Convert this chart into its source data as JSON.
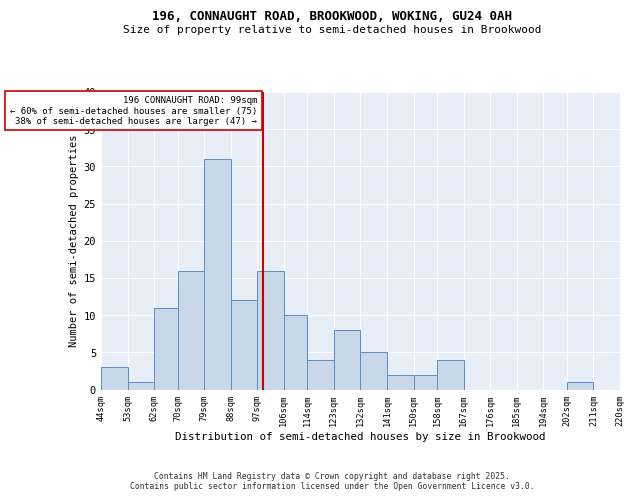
{
  "title1": "196, CONNAUGHT ROAD, BROOKWOOD, WOKING, GU24 0AH",
  "title2": "Size of property relative to semi-detached houses in Brookwood",
  "xlabel": "Distribution of semi-detached houses by size in Brookwood",
  "ylabel": "Number of semi-detached properties",
  "footer1": "Contains HM Land Registry data © Crown copyright and database right 2025.",
  "footer2": "Contains public sector information licensed under the Open Government Licence v3.0.",
  "bins": [
    44,
    53,
    62,
    70,
    79,
    88,
    97,
    106,
    114,
    123,
    132,
    141,
    150,
    158,
    167,
    176,
    185,
    194,
    202,
    211,
    220
  ],
  "counts": [
    3,
    1,
    11,
    16,
    31,
    12,
    16,
    10,
    4,
    8,
    5,
    2,
    2,
    4,
    0,
    0,
    0,
    0,
    1,
    0
  ],
  "bar_color": "#c8d8e8",
  "bar_edge_color": "#5b8ec4",
  "background_color": "#e8eef8",
  "grid_color": "#ffffff",
  "vline_x": 99,
  "vline_color": "#cc0000",
  "annotation_text": "196 CONNAUGHT ROAD: 99sqm\n← 60% of semi-detached houses are smaller (75)\n38% of semi-detached houses are larger (47) →",
  "annotation_box_color": "#ffffff",
  "annotation_box_edge": "#cc0000",
  "ylim": [
    0,
    40
  ],
  "yticks": [
    0,
    5,
    10,
    15,
    20,
    25,
    30,
    35,
    40
  ]
}
